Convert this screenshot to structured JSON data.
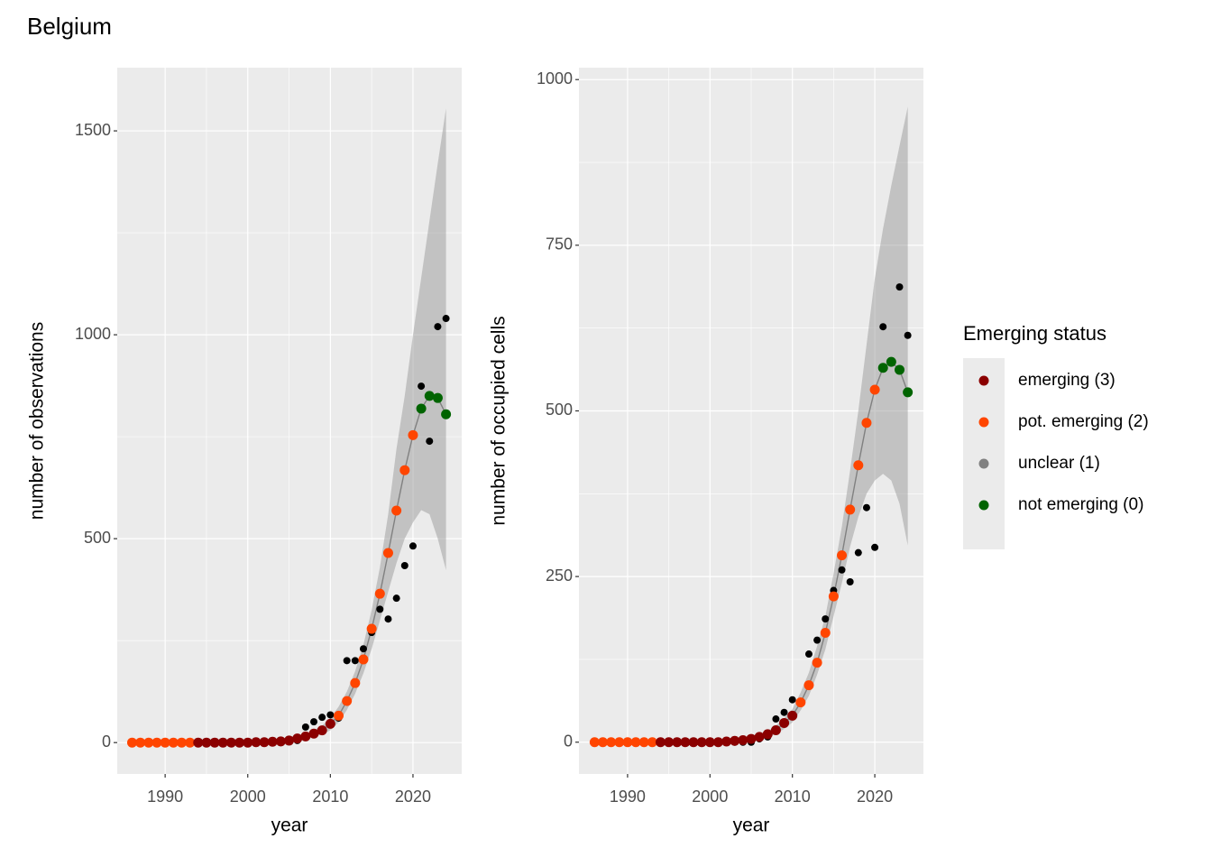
{
  "title": "Belgium",
  "legend": {
    "title": "Emerging status",
    "items": [
      {
        "name": "emerging (3)",
        "code": 3,
        "color": "#8b0000"
      },
      {
        "name": "pot. emerging (2)",
        "code": 2,
        "color": "#ff4500"
      },
      {
        "name": "unclear (1)",
        "code": 1,
        "color": "#808080"
      },
      {
        "name": "not emerging (0)",
        "code": 0,
        "color": "#006400"
      }
    ]
  },
  "chart_data": [
    {
      "type": "scatter",
      "xlabel": "year",
      "ylabel": "number of observations",
      "x": [
        1986,
        1987,
        1988,
        1989,
        1990,
        1991,
        1992,
        1993,
        1994,
        1995,
        1996,
        1997,
        1998,
        1999,
        2000,
        2001,
        2002,
        2003,
        2004,
        2005,
        2006,
        2007,
        2008,
        2009,
        2010,
        2011,
        2012,
        2013,
        2014,
        2015,
        2016,
        2017,
        2018,
        2019,
        2020,
        2021,
        2022,
        2023,
        2024
      ],
      "observed": {
        "color": "#000000",
        "values": [
          0,
          0,
          0,
          0,
          0,
          0,
          0,
          0,
          0,
          0,
          0,
          0,
          0,
          0,
          0,
          0,
          0,
          0,
          0,
          2,
          5,
          38,
          51,
          62,
          68,
          60,
          201,
          201,
          230,
          270,
          327,
          303,
          354,
          434,
          482,
          874,
          739,
          1020,
          1040
        ]
      },
      "fit": {
        "color": "#808080",
        "values": [
          0,
          0,
          0,
          0,
          0,
          0,
          0,
          0,
          0,
          0,
          0,
          0,
          0,
          0,
          0,
          1,
          1,
          2,
          3,
          5,
          10,
          15,
          22,
          30,
          46,
          66,
          102,
          146,
          204,
          279,
          365,
          465,
          569,
          668,
          754,
          819,
          850,
          845,
          805
        ],
        "status": [
          2,
          2,
          2,
          2,
          2,
          2,
          2,
          2,
          3,
          3,
          3,
          3,
          3,
          3,
          3,
          3,
          3,
          3,
          3,
          3,
          3,
          3,
          3,
          3,
          3,
          2,
          2,
          2,
          2,
          2,
          2,
          2,
          2,
          2,
          2,
          0,
          0,
          0,
          0
        ]
      },
      "ribbon": {
        "color": "#999999",
        "lower": [
          0,
          0,
          0,
          0,
          0,
          0,
          0,
          0,
          0,
          0,
          0,
          0,
          0,
          0,
          0,
          0,
          0,
          0,
          1,
          2,
          5,
          9,
          15,
          21,
          30,
          50,
          80,
          120,
          170,
          230,
          300,
          370,
          440,
          500,
          540,
          570,
          560,
          500,
          423
        ],
        "upper": [
          0,
          0,
          0,
          0,
          0,
          0,
          0,
          0,
          0,
          0,
          0,
          0,
          0,
          0,
          0,
          0,
          2,
          3,
          5,
          8,
          14,
          20,
          30,
          42,
          60,
          88,
          125,
          175,
          240,
          325,
          430,
          560,
          720,
          850,
          1000,
          1140,
          1280,
          1420,
          1555
        ]
      },
      "xlim": [
        1984.2,
        2025.9
      ],
      "ylim": [
        -77,
        1655
      ],
      "xticks": [
        1990,
        2000,
        2010,
        2020
      ],
      "yticks": [
        0,
        500,
        1000,
        1500
      ],
      "grid": true
    },
    {
      "type": "scatter",
      "xlabel": "year",
      "ylabel": "number of occupied cells",
      "x": [
        1986,
        1987,
        1988,
        1989,
        1990,
        1991,
        1992,
        1993,
        1994,
        1995,
        1996,
        1997,
        1998,
        1999,
        2000,
        2001,
        2002,
        2003,
        2004,
        2005,
        2006,
        2007,
        2008,
        2009,
        2010,
        2011,
        2012,
        2013,
        2014,
        2015,
        2016,
        2017,
        2018,
        2019,
        2020,
        2021,
        2022,
        2023,
        2024
      ],
      "observed": {
        "color": "#000000",
        "values": [
          0,
          0,
          0,
          0,
          0,
          0,
          0,
          0,
          0,
          0,
          0,
          0,
          0,
          0,
          0,
          0,
          0,
          0,
          0,
          0,
          5,
          8,
          35,
          45,
          64,
          60,
          133,
          154,
          186,
          229,
          260,
          242,
          286,
          354,
          294,
          627,
          575,
          687,
          614
        ]
      },
      "fit": {
        "color": "#808080",
        "values": [
          0,
          0,
          0,
          0,
          0,
          0,
          0,
          0,
          0,
          0,
          0,
          0,
          0,
          0,
          0,
          0,
          1,
          2,
          3,
          5,
          8,
          12,
          18,
          29,
          40,
          60,
          86,
          120,
          165,
          220,
          282,
          351,
          418,
          482,
          532,
          565,
          574,
          562,
          528
        ],
        "status": [
          2,
          2,
          2,
          2,
          2,
          2,
          2,
          2,
          3,
          3,
          3,
          3,
          3,
          3,
          3,
          3,
          3,
          3,
          3,
          3,
          3,
          3,
          3,
          3,
          3,
          2,
          2,
          2,
          2,
          2,
          2,
          2,
          2,
          2,
          2,
          0,
          0,
          0,
          0
        ]
      },
      "ribbon": {
        "color": "#999999",
        "lower": [
          0,
          0,
          0,
          0,
          0,
          0,
          0,
          0,
          0,
          0,
          0,
          0,
          0,
          0,
          0,
          0,
          0,
          0,
          1,
          3,
          5,
          8,
          12,
          20,
          30,
          48,
          70,
          102,
          140,
          190,
          240,
          295,
          340,
          375,
          395,
          405,
          395,
          360,
          297
        ],
        "upper": [
          0,
          0,
          0,
          0,
          0,
          0,
          0,
          0,
          0,
          0,
          0,
          0,
          0,
          0,
          0,
          0,
          2,
          3,
          5,
          7,
          11,
          17,
          25,
          36,
          50,
          75,
          105,
          145,
          190,
          255,
          325,
          410,
          500,
          600,
          700,
          775,
          840,
          900,
          959
        ]
      },
      "xlim": [
        1984.1,
        2025.9
      ],
      "ylim": [
        -48,
        1018
      ],
      "xticks": [
        1990,
        2000,
        2010,
        2020
      ],
      "yticks": [
        0,
        250,
        500,
        750,
        1000
      ],
      "grid": true
    }
  ]
}
